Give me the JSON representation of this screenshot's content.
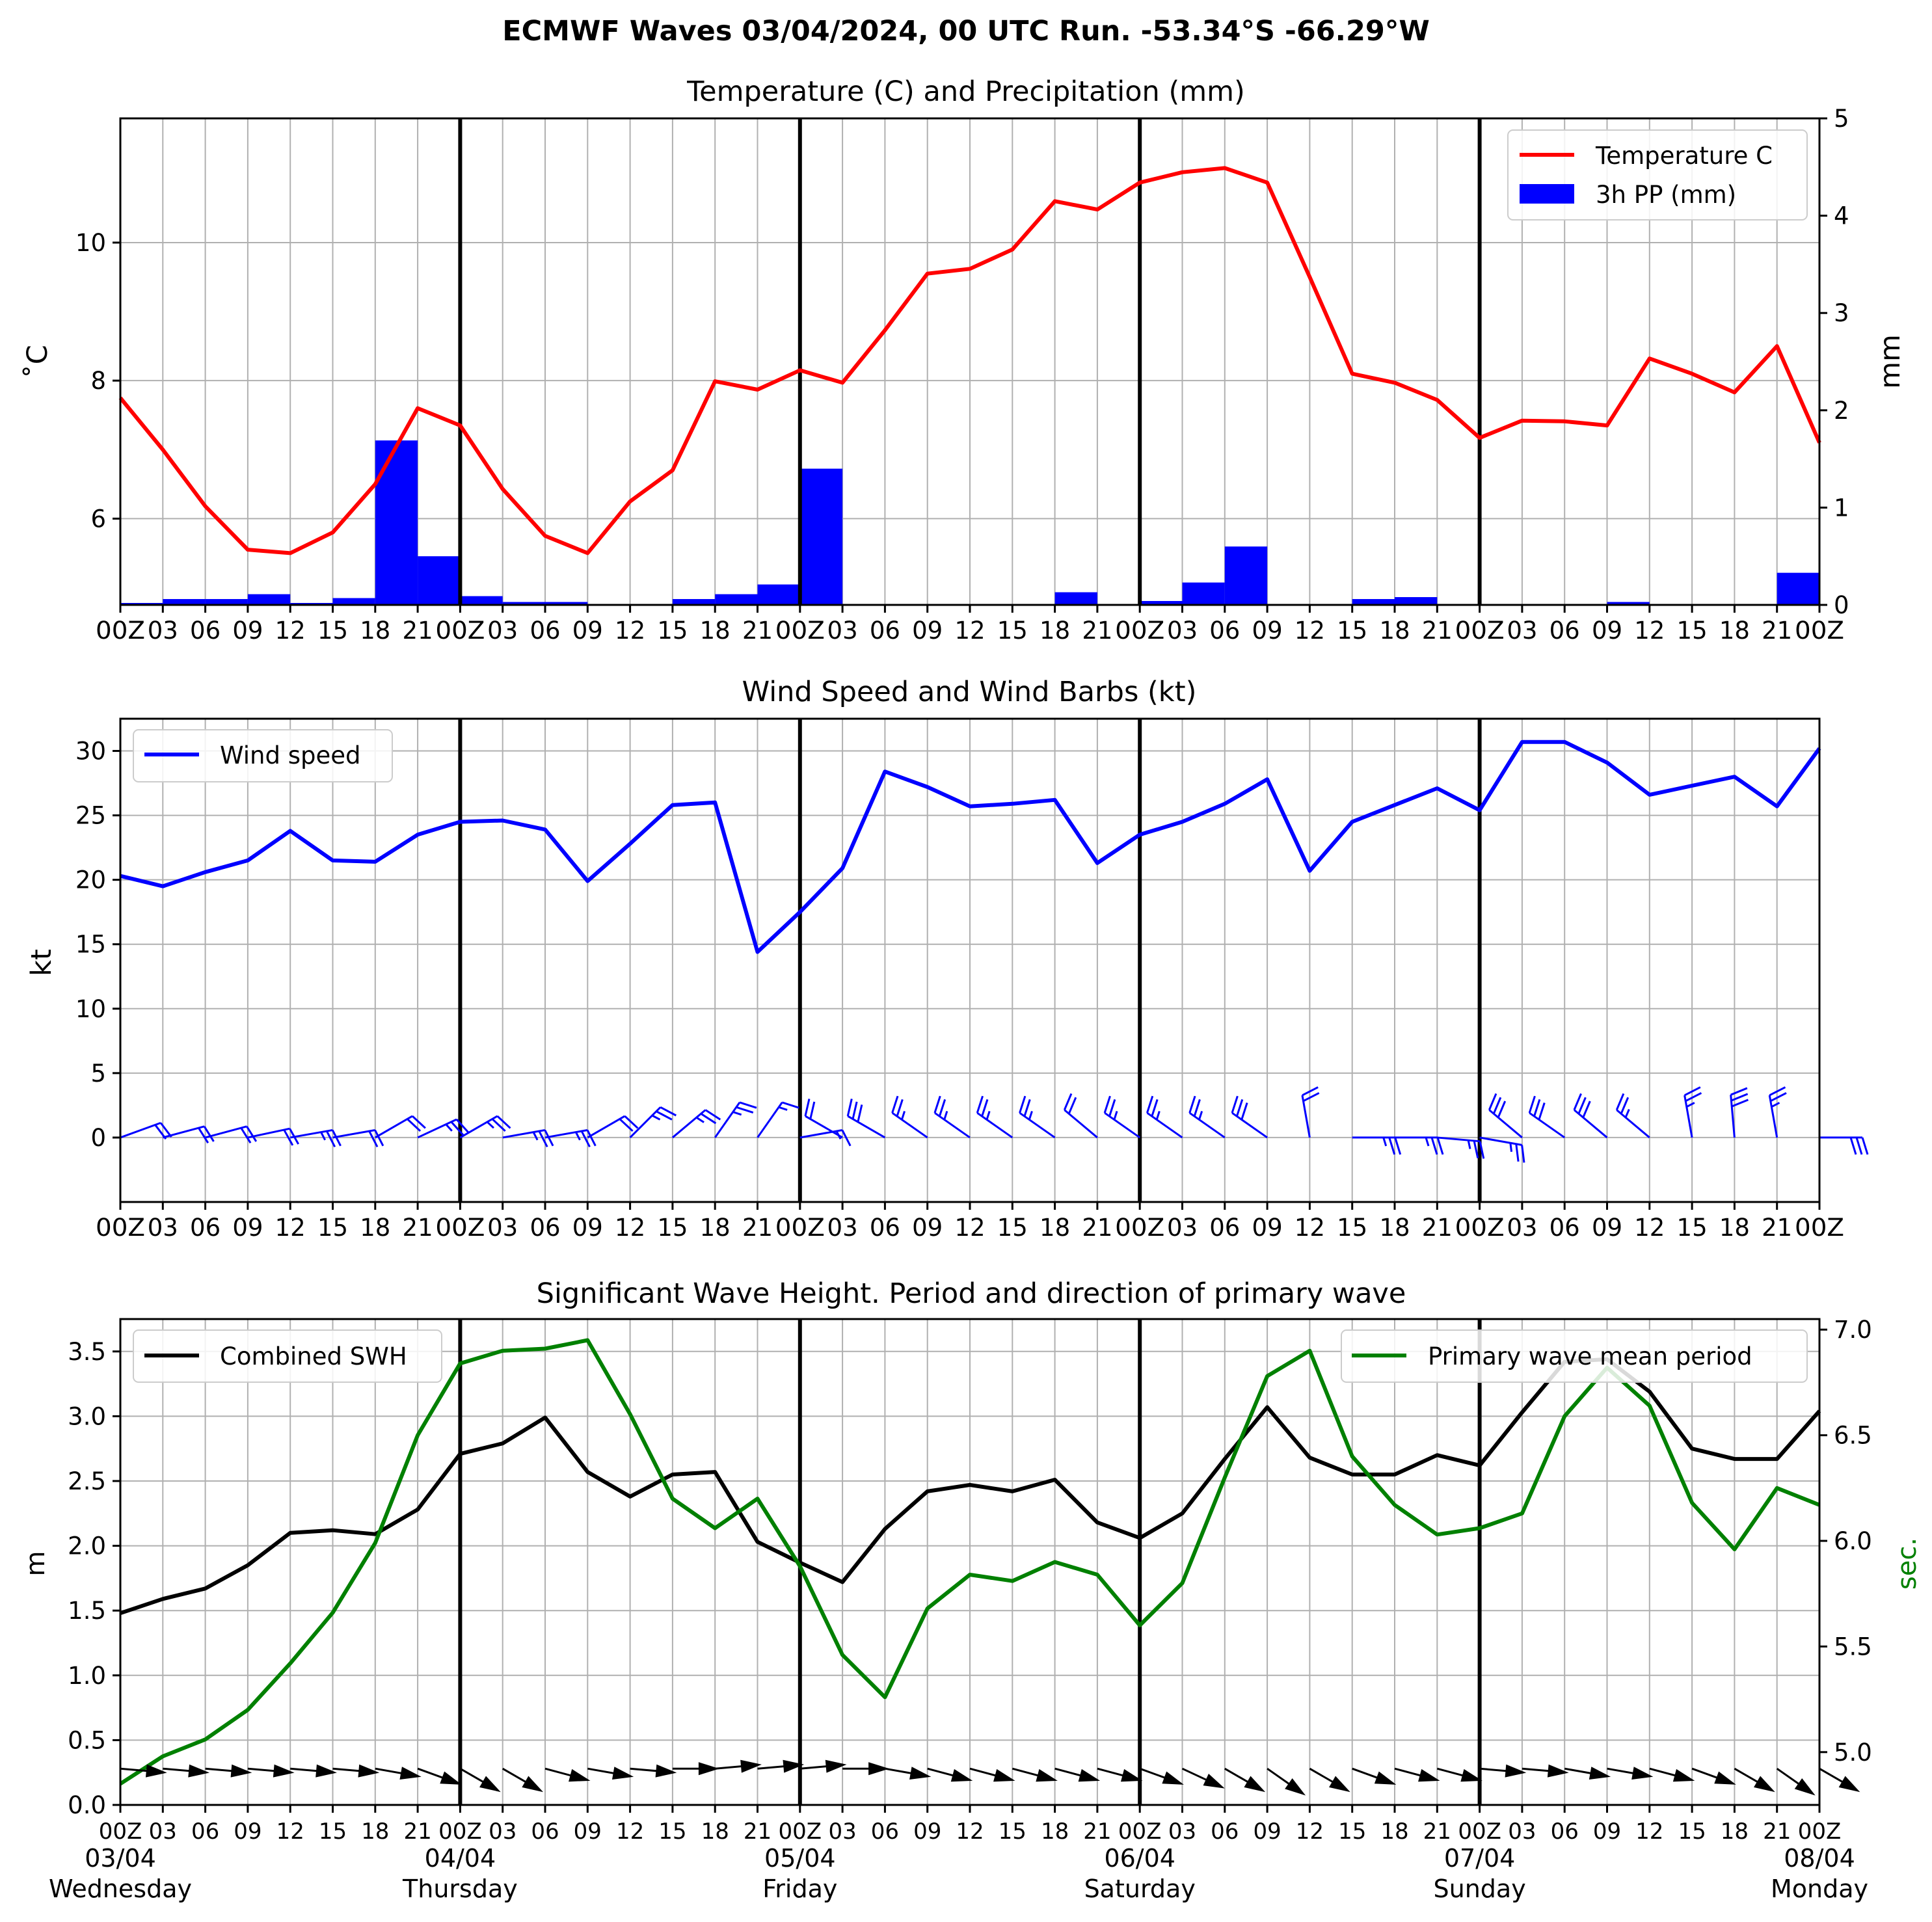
{
  "title": "ECMWF Waves 03/04/2024, 00 UTC Run. -53.34°S -66.29°W",
  "x_time_ticks": [
    "00Z",
    "03",
    "06",
    "09",
    "12",
    "15",
    "18",
    "21",
    "00Z",
    "03",
    "06",
    "09",
    "12",
    "15",
    "18",
    "21",
    "00Z",
    "03",
    "06",
    "09",
    "12",
    "15",
    "18",
    "21",
    "00Z",
    "03",
    "06",
    "09",
    "12",
    "15",
    "18",
    "21",
    "00Z",
    "03",
    "06",
    "09",
    "12",
    "15",
    "18",
    "21",
    "00Z"
  ],
  "x_date_ticks": [
    {
      "date": "03/04",
      "day": "Wednesday"
    },
    {
      "date": "04/04",
      "day": "Thursday"
    },
    {
      "date": "05/04",
      "day": "Friday"
    },
    {
      "date": "06/04",
      "day": "Saturday"
    },
    {
      "date": "07/04",
      "day": "Sunday"
    },
    {
      "date": "08/04",
      "day": "Monday"
    }
  ],
  "colors": {
    "temperature": "#ff0000",
    "precip": "#0000ff",
    "wind": "#0000ff",
    "swh": "#000000",
    "period": "#008000",
    "grid": "#b0b0b0",
    "day_line": "#000000"
  },
  "chart_data": [
    {
      "type": "line",
      "title": "Temperature (C) and Precipitation (mm)",
      "x_unit": "hours from 03/04 00Z",
      "xlim": [
        0,
        120
      ],
      "ylabel": "$^\\circ$C",
      "ylabel_display": "˚C",
      "ylim": [
        4.75,
        11.8
      ],
      "yticks": [
        6,
        8,
        10
      ],
      "y2label": "mm",
      "y2lim": [
        0,
        5
      ],
      "y2ticks": [
        0,
        1,
        2,
        3,
        4,
        5
      ],
      "legend": {
        "placement": "top-right",
        "entries": [
          "Temperature C",
          "3h PP (mm)"
        ]
      },
      "grid": true,
      "series": [
        {
          "name": "Temperature C",
          "kind": "line",
          "axis": "left",
          "x": [
            0,
            3,
            6,
            9,
            12,
            15,
            18,
            21,
            24,
            27,
            30,
            33,
            36,
            39,
            42,
            45,
            48,
            51,
            54,
            57,
            60,
            63,
            66,
            69,
            72,
            75,
            78,
            81,
            84,
            87,
            90,
            93,
            96,
            99,
            102,
            105,
            108,
            111,
            114,
            117,
            120
          ],
          "values": [
            7.75,
            7.0,
            6.18,
            5.55,
            5.5,
            5.8,
            6.5,
            7.6,
            7.35,
            6.43,
            5.75,
            5.5,
            6.25,
            6.7,
            7.99,
            7.87,
            8.15,
            7.97,
            8.73,
            9.55,
            9.62,
            9.9,
            10.6,
            10.48,
            10.87,
            11.02,
            11.08,
            10.87,
            9.5,
            8.1,
            7.97,
            7.72,
            7.17,
            7.42,
            7.41,
            7.35,
            8.32,
            8.1,
            7.83,
            8.5,
            7.1
          ]
        },
        {
          "name": "3h PP (mm)",
          "kind": "bar",
          "axis": "right",
          "x": [
            3,
            6,
            9,
            12,
            15,
            18,
            21,
            24,
            27,
            30,
            33,
            36,
            39,
            42,
            45,
            48,
            51,
            54,
            57,
            60,
            63,
            66,
            69,
            72,
            75,
            78,
            81,
            84,
            87,
            90,
            93,
            96,
            99,
            102,
            105,
            108,
            111,
            114,
            117,
            120
          ],
          "values": [
            0.02,
            0.06,
            0.06,
            0.11,
            0.02,
            0.07,
            1.69,
            0.5,
            0.09,
            0.03,
            0.03,
            0,
            0,
            0.06,
            0.11,
            0.21,
            1.4,
            0,
            0,
            0,
            0,
            0,
            0.13,
            0.01,
            0.04,
            0.23,
            0.6,
            0,
            0,
            0.06,
            0.08,
            0,
            0,
            0,
            0,
            0.03,
            0,
            0,
            0,
            0.33
          ]
        }
      ]
    },
    {
      "type": "line",
      "title": "Wind Speed and Wind Barbs (kt)",
      "x_unit": "hours from 03/04 00Z",
      "xlim": [
        0,
        120
      ],
      "ylabel": "kt",
      "ylim": [
        -5,
        32.5
      ],
      "yticks": [
        0,
        5,
        10,
        15,
        20,
        25,
        30
      ],
      "legend": {
        "placement": "top-left",
        "entries": [
          "Wind speed"
        ]
      },
      "grid": true,
      "series": [
        {
          "name": "Wind speed",
          "x": [
            0,
            3,
            6,
            9,
            12,
            15,
            18,
            21,
            24,
            27,
            30,
            33,
            36,
            39,
            42,
            45,
            48,
            51,
            54,
            57,
            60,
            63,
            66,
            69,
            72,
            75,
            78,
            81,
            84,
            87,
            90,
            93,
            96,
            99,
            102,
            105,
            108,
            111,
            114,
            117,
            120
          ],
          "values": [
            20.3,
            19.5,
            20.6,
            21.5,
            23.8,
            21.5,
            21.4,
            23.5,
            24.5,
            24.6,
            23.9,
            19.9,
            22.8,
            25.8,
            26.0,
            14.4,
            17.5,
            20.9,
            28.4,
            27.2,
            25.7,
            25.9,
            26.2,
            21.3,
            23.5,
            24.5,
            25.9,
            27.8,
            20.7,
            24.5,
            25.8,
            27.1,
            25.4,
            30.7,
            30.7,
            29.1,
            26.6,
            27.3,
            28.0,
            25.7,
            30.2
          ]
        }
      ],
      "wind_barbs": {
        "x": [
          0,
          3,
          6,
          9,
          12,
          15,
          18,
          21,
          24,
          27,
          30,
          33,
          36,
          39,
          42,
          45,
          48,
          51,
          54,
          57,
          60,
          63,
          66,
          69,
          72,
          75,
          78,
          81,
          84,
          87,
          90,
          93,
          96,
          99,
          102,
          105,
          108,
          111,
          114,
          117,
          120
        ],
        "speed_kt": [
          20,
          20,
          20,
          20,
          25,
          20,
          20,
          25,
          25,
          25,
          25,
          20,
          25,
          25,
          25,
          15,
          15,
          20,
          30,
          25,
          25,
          25,
          25,
          20,
          25,
          25,
          25,
          30,
          20,
          25,
          25,
          25,
          25,
          30,
          30,
          30,
          25,
          25,
          30,
          25,
          30
        ],
        "direction_deg": [
          70,
          75,
          75,
          78,
          80,
          80,
          60,
          65,
          60,
          80,
          80,
          60,
          45,
          50,
          35,
          35,
          80,
          300,
          300,
          305,
          305,
          305,
          305,
          310,
          305,
          305,
          305,
          305,
          350,
          90,
          90,
          95,
          100,
          310,
          305,
          310,
          310,
          350,
          355,
          350,
          90
        ]
      }
    },
    {
      "type": "line",
      "title": "Significant Wave Height. Period and direction of primary wave",
      "x_unit": "hours from 03/04 00Z",
      "xlim": [
        0,
        120
      ],
      "ylabel": "m",
      "ylim": [
        0,
        3.75
      ],
      "yticks": [
        0.0,
        0.5,
        1.0,
        1.5,
        2.0,
        2.5,
        3.0,
        3.5
      ],
      "y2label": "sec.",
      "y2lim": [
        4.75,
        7.05
      ],
      "y2ticks": [
        5.0,
        5.5,
        6.0,
        6.5,
        7.0
      ],
      "legend": [
        {
          "placement": "top-left",
          "entries": [
            "Combined SWH"
          ]
        },
        {
          "placement": "top-right",
          "entries": [
            "Primary wave mean period"
          ]
        }
      ],
      "grid": true,
      "series": [
        {
          "name": "Combined SWH",
          "axis": "left",
          "x": [
            0,
            3,
            6,
            9,
            12,
            15,
            18,
            21,
            24,
            27,
            30,
            33,
            36,
            39,
            42,
            45,
            48,
            51,
            54,
            57,
            60,
            63,
            66,
            69,
            72,
            75,
            78,
            81,
            84,
            87,
            90,
            93,
            96,
            99,
            102,
            105,
            108,
            111,
            114,
            117,
            120
          ],
          "values": [
            1.48,
            1.59,
            1.67,
            1.85,
            2.1,
            2.12,
            2.09,
            2.28,
            2.71,
            2.79,
            2.99,
            2.57,
            2.38,
            2.55,
            2.57,
            2.03,
            1.87,
            1.72,
            2.13,
            2.42,
            2.47,
            2.42,
            2.51,
            2.18,
            2.06,
            2.25,
            2.67,
            3.07,
            2.68,
            2.55,
            2.55,
            2.7,
            2.62,
            3.03,
            3.42,
            3.44,
            3.19,
            2.75,
            2.67,
            2.67,
            3.04
          ]
        },
        {
          "name": "Primary wave mean period",
          "axis": "right",
          "x": [
            0,
            3,
            6,
            9,
            12,
            15,
            18,
            21,
            24,
            27,
            30,
            33,
            36,
            39,
            42,
            45,
            48,
            51,
            54,
            57,
            60,
            63,
            66,
            69,
            72,
            75,
            78,
            81,
            84,
            87,
            90,
            93,
            96,
            99,
            102,
            105,
            108,
            111,
            114,
            117,
            120
          ],
          "values": [
            4.85,
            4.98,
            5.06,
            5.2,
            5.42,
            5.66,
            5.99,
            6.5,
            6.84,
            6.9,
            6.91,
            6.95,
            6.6,
            6.2,
            6.06,
            6.2,
            5.88,
            5.46,
            5.26,
            5.68,
            5.84,
            5.81,
            5.9,
            5.84,
            5.6,
            5.8,
            6.3,
            6.78,
            6.9,
            6.4,
            6.17,
            6.03,
            6.06,
            6.13,
            6.59,
            6.82,
            6.64,
            6.18,
            5.96,
            6.25,
            6.17
          ]
        }
      ],
      "wave_direction_arrows": {
        "x": [
          0,
          3,
          6,
          9,
          12,
          15,
          18,
          21,
          24,
          27,
          30,
          33,
          36,
          39,
          42,
          45,
          48,
          51,
          54,
          57,
          60,
          63,
          66,
          69,
          72,
          75,
          78,
          81,
          84,
          87,
          90,
          93,
          96,
          99,
          102,
          105,
          108,
          111,
          114,
          117,
          120
        ],
        "direction_deg": [
          275,
          275,
          275,
          275,
          275,
          275,
          280,
          290,
          300,
          300,
          285,
          280,
          275,
          270,
          265,
          265,
          265,
          270,
          280,
          285,
          285,
          285,
          285,
          285,
          290,
          295,
          300,
          305,
          300,
          290,
          285,
          285,
          275,
          275,
          280,
          280,
          285,
          290,
          300,
          305,
          300
        ]
      }
    }
  ]
}
